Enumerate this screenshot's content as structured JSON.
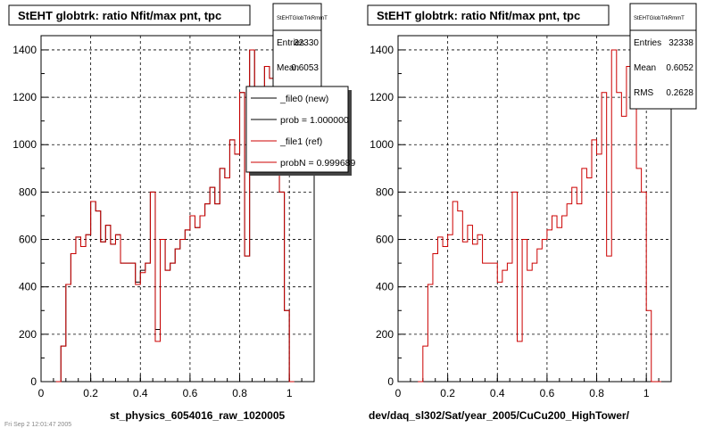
{
  "pads": [
    {
      "title": "StEHT globtrk: ratio Nfit/max pnt, tpc",
      "stats": {
        "name": "StEHTGlobTrkRmmT",
        "rows": [
          {
            "label": "Entries",
            "value": "32330"
          },
          {
            "label": "Mean",
            "value": "0.6053"
          }
        ]
      },
      "legend": {
        "entries": [
          {
            "label": "_file0 (new)",
            "color": "#000000"
          },
          {
            "label": "prob = 1.000000",
            "color": "#000000"
          },
          {
            "label": "_file1 (ref)",
            "color": "#cc0000"
          },
          {
            "label": "probN = 0.999689",
            "color": "#cc0000"
          }
        ]
      },
      "xlabel": "st_physics_6054016_raw_1020005"
    },
    {
      "title": "StEHT globtrk: ratio Nfit/max pnt, tpc",
      "stats": {
        "name": "StEHTGlobTrkRmmT",
        "rows": [
          {
            "label": "Entries",
            "value": "32338"
          },
          {
            "label": "Mean",
            "value": "0.6052"
          },
          {
            "label": "RMS",
            "value": "0.2628"
          }
        ]
      },
      "xlabel": "dev/daq_sl302/Sat/year_2005/CuCu200_HighTower/"
    }
  ],
  "corner_text": "Fri Sep 2 12:01:47 2005",
  "chart_data": [
    {
      "type": "histogram",
      "title": "StEHT globtrk: ratio Nfit/max pnt, tpc",
      "xlabel": "st_physics_6054016_raw_1020005",
      "xlim": [
        0,
        1.1
      ],
      "ylim": [
        0,
        1460
      ],
      "x_ticks": [
        "0",
        "0.2",
        "0.4",
        "0.6",
        "0.8",
        "1"
      ],
      "y_ticks": [
        "0",
        "200",
        "400",
        "600",
        "800",
        "1000",
        "1200",
        "1400"
      ],
      "grid": true,
      "bin_width": 0.02,
      "bin_start": 0.06,
      "series": [
        {
          "name": "_file0 (new)",
          "color": "#000000",
          "values": [
            0,
            150,
            410,
            540,
            610,
            570,
            620,
            760,
            720,
            590,
            660,
            580,
            620,
            500,
            500,
            500,
            420,
            470,
            500,
            800,
            220,
            600,
            470,
            500,
            560,
            600,
            640,
            700,
            650,
            700,
            750,
            820,
            750,
            900,
            860,
            1020,
            960,
            1220,
            530,
            1400,
            1220,
            1120,
            1330,
            1280,
            900,
            800,
            300,
            0
          ]
        },
        {
          "name": "_file1 (ref)",
          "color": "#cc0000",
          "values": [
            0,
            150,
            410,
            540,
            610,
            570,
            620,
            760,
            720,
            590,
            660,
            580,
            620,
            500,
            500,
            500,
            410,
            460,
            500,
            800,
            170,
            600,
            470,
            500,
            560,
            600,
            640,
            700,
            650,
            700,
            750,
            820,
            750,
            900,
            860,
            1020,
            960,
            1220,
            530,
            1400,
            1220,
            1120,
            1330,
            1280,
            900,
            800,
            300,
            0
          ]
        }
      ]
    },
    {
      "type": "histogram",
      "title": "StEHT globtrk: ratio Nfit/max pnt, tpc",
      "xlabel": "dev/daq_sl302/Sat/year_2005/CuCu200_HighTower/",
      "xlim": [
        0,
        1.1
      ],
      "ylim": [
        0,
        1460
      ],
      "x_ticks": [
        "0",
        "0.2",
        "0.4",
        "0.6",
        "0.8",
        "1"
      ],
      "y_ticks": [
        "0",
        "200",
        "400",
        "600",
        "800",
        "1000",
        "1200",
        "1400"
      ],
      "grid": true,
      "bin_width": 0.02,
      "bin_start": 0.08,
      "series": [
        {
          "name": "",
          "color": "#cc0000",
          "values": [
            0,
            150,
            410,
            540,
            610,
            570,
            620,
            760,
            720,
            590,
            660,
            580,
            620,
            500,
            500,
            500,
            420,
            470,
            500,
            800,
            170,
            600,
            470,
            500,
            560,
            600,
            640,
            700,
            650,
            700,
            750,
            820,
            750,
            900,
            860,
            1020,
            960,
            1220,
            530,
            1400,
            1220,
            1120,
            1330,
            1280,
            900,
            800,
            300,
            0,
            0
          ]
        }
      ]
    }
  ]
}
